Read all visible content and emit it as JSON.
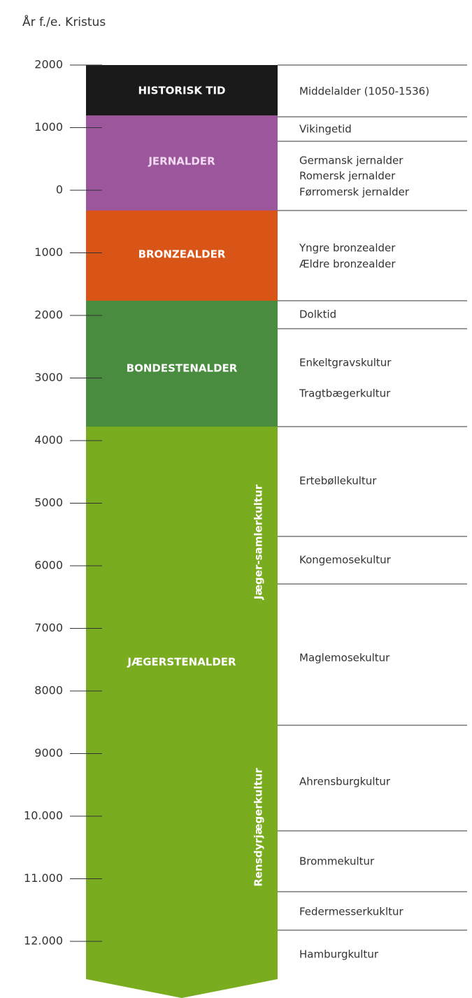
{
  "header": {
    "title": "År f./e. Kristus"
  },
  "ticks": [
    "2000",
    "1000",
    "0",
    "1000",
    "2000",
    "3000",
    "4000",
    "5000",
    "6000",
    "7000",
    "8000",
    "9000",
    "10.000",
    "11.000",
    "12.000"
  ],
  "periods": [
    "HISTORISK TID",
    "JERNALDER",
    "BRONZEALDER",
    "BONDESTENALDER",
    "JÆGERSTENALDER"
  ],
  "vertical_labels": [
    "Jæger-samlerkultur",
    "Rensdyrjægerkultur"
  ],
  "cultures": [
    "Middelalder (1050-1536)",
    "Vikingetid",
    "Germansk jernalder",
    "Romersk jernalder",
    "Førromersk jernalder",
    "Yngre bronzealder",
    "Ældre bronzealder",
    "Dolktid",
    "Enkeltgravskultur",
    "Tragtbægerkultur",
    "Ertebøllekultur",
    "Kongemosekultur",
    "Maglemosekultur",
    "Ahrensburgkultur",
    "Brommekultur",
    "Federmesserkukltur",
    "Hamburgkultur"
  ]
}
